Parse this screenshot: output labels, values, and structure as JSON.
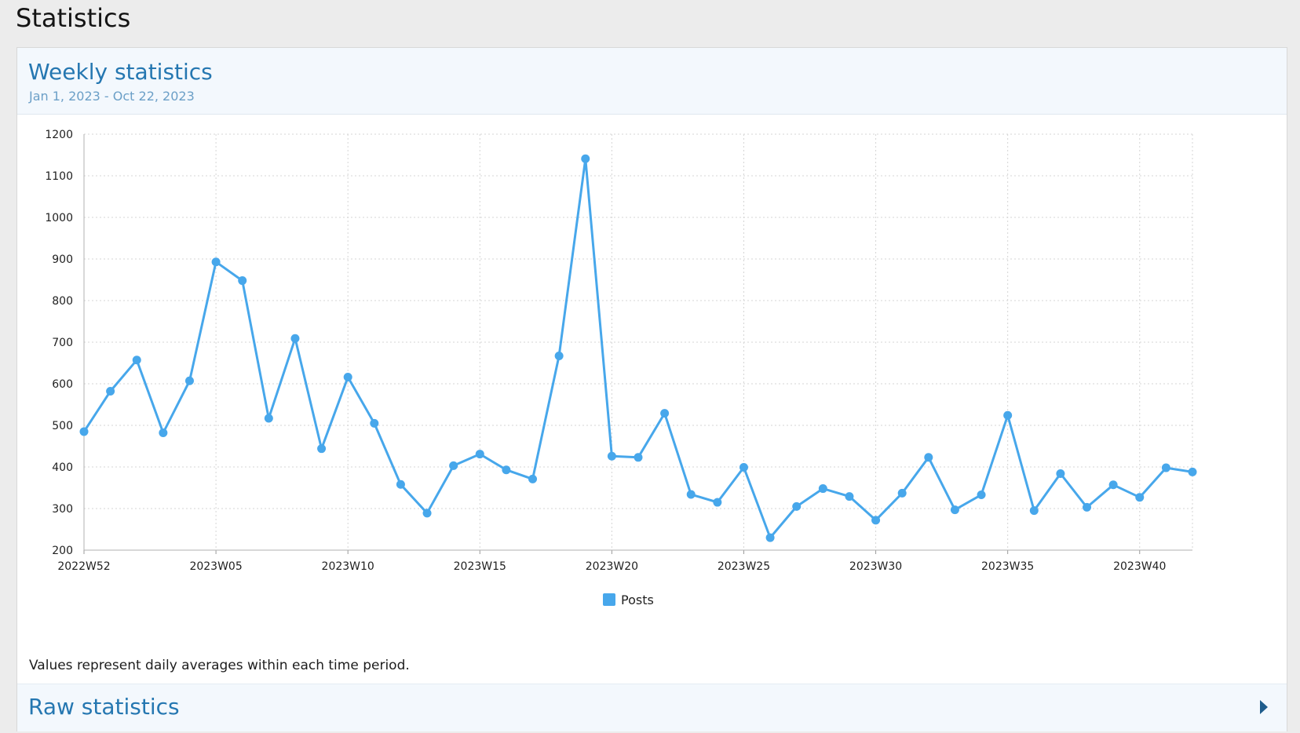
{
  "page": {
    "title": "Statistics"
  },
  "weekly": {
    "title": "Weekly statistics",
    "date_range": "Jan 1, 2023 - Oct 22, 2023",
    "note": "Values represent daily averages within each time period."
  },
  "raw": {
    "title": "Raw statistics",
    "expand_icon": "caret-right-icon"
  },
  "colors": {
    "series": "#47a7eb",
    "header_text": "#2577b1",
    "subtitle_text": "#6b9fc7",
    "grid": "#d4d4d4"
  },
  "chart_data": {
    "type": "line",
    "title": "",
    "xlabel": "",
    "ylabel": "",
    "ylim": [
      200,
      1200
    ],
    "yticks": [
      200,
      300,
      400,
      500,
      600,
      700,
      800,
      900,
      1000,
      1100,
      1200
    ],
    "grid": true,
    "grid_style": "dotted",
    "legend_position": "bottom-center",
    "x": [
      "2022W52",
      "2023W01",
      "2023W02",
      "2023W03",
      "2023W04",
      "2023W05",
      "2023W06",
      "2023W07",
      "2023W08",
      "2023W09",
      "2023W10",
      "2023W11",
      "2023W12",
      "2023W13",
      "2023W14",
      "2023W15",
      "2023W16",
      "2023W17",
      "2023W18",
      "2023W19",
      "2023W20",
      "2023W21",
      "2023W22",
      "2023W23",
      "2023W24",
      "2023W25",
      "2023W26",
      "2023W27",
      "2023W28",
      "2023W29",
      "2023W30",
      "2023W31",
      "2023W32",
      "2023W33",
      "2023W34",
      "2023W35",
      "2023W36",
      "2023W37",
      "2023W38",
      "2023W39",
      "2023W40",
      "2023W41",
      "2023W42"
    ],
    "x_tick_labels": [
      "2022W52",
      "2023W05",
      "2023W10",
      "2023W15",
      "2023W20",
      "2023W25",
      "2023W30",
      "2023W35",
      "2023W40"
    ],
    "series": [
      {
        "name": "Posts",
        "color": "#47a7eb",
        "values": [
          485,
          582,
          657,
          482,
          607,
          893,
          848,
          517,
          709,
          444,
          616,
          505,
          358,
          289,
          403,
          431,
          393,
          371,
          667,
          1141,
          426,
          423,
          529,
          334,
          315,
          399,
          230,
          305,
          348,
          329,
          272,
          337,
          423,
          297,
          333,
          524,
          295,
          384,
          303,
          357,
          327,
          398,
          388
        ]
      }
    ]
  }
}
